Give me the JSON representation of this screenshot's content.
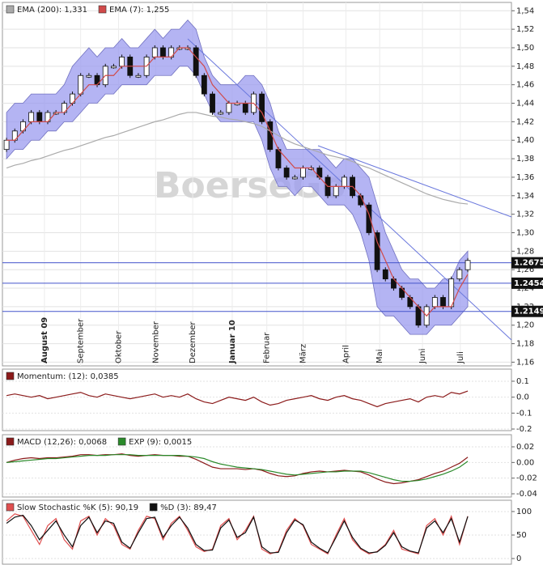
{
  "chart_data": [
    {
      "type": "candlestick",
      "watermark": "BoerseGo",
      "open": [
        1.39,
        1.4,
        1.41,
        1.42,
        1.43,
        1.42,
        1.43,
        1.43,
        1.44,
        1.45,
        1.47,
        1.47,
        1.46,
        1.48,
        1.48,
        1.49,
        1.47,
        1.47,
        1.49,
        1.5,
        1.49,
        1.5,
        1.5,
        1.5,
        1.47,
        1.45,
        1.43,
        1.43,
        1.44,
        1.44,
        1.43,
        1.45,
        1.42,
        1.39,
        1.37,
        1.36,
        1.36,
        1.37,
        1.37,
        1.36,
        1.34,
        1.35,
        1.36,
        1.34,
        1.33,
        1.3,
        1.26,
        1.25,
        1.24,
        1.23,
        1.22,
        1.2,
        1.22,
        1.23,
        1.22,
        1.25,
        1.26
      ],
      "close": [
        1.4,
        1.41,
        1.42,
        1.43,
        1.42,
        1.43,
        1.43,
        1.44,
        1.45,
        1.47,
        1.47,
        1.46,
        1.48,
        1.48,
        1.49,
        1.47,
        1.47,
        1.49,
        1.5,
        1.49,
        1.5,
        1.5,
        1.5,
        1.47,
        1.45,
        1.43,
        1.43,
        1.44,
        1.44,
        1.43,
        1.45,
        1.42,
        1.39,
        1.37,
        1.36,
        1.36,
        1.37,
        1.37,
        1.36,
        1.34,
        1.35,
        1.36,
        1.34,
        1.33,
        1.3,
        1.26,
        1.25,
        1.24,
        1.23,
        1.22,
        1.2,
        1.22,
        1.23,
        1.22,
        1.25,
        1.26,
        1.27
      ],
      "band": {
        "color": "#9b9bef",
        "upper": [
          1.43,
          1.44,
          1.44,
          1.45,
          1.45,
          1.45,
          1.45,
          1.46,
          1.48,
          1.49,
          1.5,
          1.49,
          1.5,
          1.5,
          1.51,
          1.5,
          1.5,
          1.51,
          1.52,
          1.51,
          1.52,
          1.52,
          1.53,
          1.52,
          1.49,
          1.47,
          1.46,
          1.46,
          1.46,
          1.47,
          1.47,
          1.46,
          1.44,
          1.41,
          1.39,
          1.39,
          1.39,
          1.39,
          1.39,
          1.38,
          1.37,
          1.38,
          1.38,
          1.37,
          1.36,
          1.33,
          1.3,
          1.28,
          1.26,
          1.25,
          1.25,
          1.24,
          1.24,
          1.25,
          1.25,
          1.27,
          1.28
        ],
        "lower": [
          1.38,
          1.39,
          1.39,
          1.4,
          1.4,
          1.41,
          1.41,
          1.42,
          1.42,
          1.43,
          1.44,
          1.44,
          1.45,
          1.45,
          1.46,
          1.46,
          1.46,
          1.46,
          1.47,
          1.47,
          1.47,
          1.48,
          1.48,
          1.47,
          1.45,
          1.43,
          1.42,
          1.42,
          1.42,
          1.42,
          1.42,
          1.4,
          1.37,
          1.35,
          1.35,
          1.34,
          1.35,
          1.35,
          1.34,
          1.33,
          1.33,
          1.33,
          1.32,
          1.3,
          1.27,
          1.22,
          1.21,
          1.21,
          1.2,
          1.19,
          1.19,
          1.19,
          1.2,
          1.2,
          1.2,
          1.21,
          1.22
        ]
      },
      "series": [
        {
          "name": "EMA (200): 1,331",
          "color": "#aaaaaa",
          "values": [
            1.37,
            1.373,
            1.375,
            1.378,
            1.38,
            1.383,
            1.386,
            1.389,
            1.391,
            1.394,
            1.397,
            1.4,
            1.403,
            1.405,
            1.408,
            1.411,
            1.414,
            1.417,
            1.42,
            1.422,
            1.425,
            1.428,
            1.43,
            1.43,
            1.428,
            1.426,
            1.425,
            1.423,
            1.422,
            1.42,
            1.418,
            1.415,
            1.41,
            1.405,
            1.4,
            1.396,
            1.393,
            1.39,
            1.387,
            1.384,
            1.382,
            1.38,
            1.377,
            1.373,
            1.37,
            1.366,
            1.362,
            1.358,
            1.354,
            1.35,
            1.346,
            1.342,
            1.339,
            1.336,
            1.334,
            1.332,
            1.331
          ]
        },
        {
          "name": "EMA (7): 1,255",
          "color": "#d04a4a",
          "values": [
            1.4,
            1.4,
            1.41,
            1.42,
            1.42,
            1.42,
            1.43,
            1.43,
            1.44,
            1.45,
            1.46,
            1.46,
            1.47,
            1.47,
            1.48,
            1.48,
            1.48,
            1.48,
            1.49,
            1.49,
            1.49,
            1.5,
            1.5,
            1.49,
            1.48,
            1.46,
            1.45,
            1.44,
            1.44,
            1.44,
            1.44,
            1.43,
            1.41,
            1.39,
            1.38,
            1.37,
            1.37,
            1.37,
            1.36,
            1.35,
            1.35,
            1.35,
            1.35,
            1.34,
            1.32,
            1.29,
            1.27,
            1.25,
            1.24,
            1.23,
            1.22,
            1.21,
            1.22,
            1.22,
            1.22,
            1.24,
            1.255
          ]
        }
      ],
      "levels": [
        1.2675,
        1.2454,
        1.2149
      ],
      "xlim": [
        -0.5,
        61.3
      ],
      "ylim": [
        1.156,
        1.549
      ],
      "xticks": [
        {
          "value": 4.6,
          "label": "August 09"
        },
        {
          "value": 9,
          "label": "September"
        },
        {
          "value": 13.6,
          "label": "Oktober"
        },
        {
          "value": 18.1,
          "label": "November"
        },
        {
          "value": 22.6,
          "label": "Dezember"
        },
        {
          "value": 27.4,
          "label": "Januar 10"
        },
        {
          "value": 31.6,
          "label": "Februar"
        },
        {
          "value": 36,
          "label": "März"
        },
        {
          "value": 41.2,
          "label": "April"
        },
        {
          "value": 45.3,
          "label": "Mai"
        },
        {
          "value": 50.5,
          "label": "Juni"
        },
        {
          "value": 55.1,
          "label": "Juli"
        }
      ],
      "yticks": [
        {
          "value": 1.16,
          "label": "1,16"
        },
        {
          "value": 1.18,
          "label": "1,18"
        },
        {
          "value": 1.2,
          "label": "1,20"
        },
        {
          "value": 1.22,
          "label": "1,22"
        },
        {
          "value": 1.24,
          "label": "1,24"
        },
        {
          "value": 1.26,
          "label": "1,26"
        },
        {
          "value": 1.28,
          "label": "1,28"
        },
        {
          "value": 1.3,
          "label": "1,30"
        },
        {
          "value": 1.32,
          "label": "1,32"
        },
        {
          "value": 1.34,
          "label": "1,34"
        },
        {
          "value": 1.36,
          "label": "1,36"
        },
        {
          "value": 1.38,
          "label": "1,38"
        },
        {
          "value": 1.4,
          "label": "1,40"
        },
        {
          "value": 1.42,
          "label": "1,42"
        },
        {
          "value": 1.44,
          "label": "1,44"
        },
        {
          "value": 1.46,
          "label": "1,46"
        },
        {
          "value": 1.48,
          "label": "1,48"
        },
        {
          "value": 1.5,
          "label": "1,50"
        },
        {
          "value": 1.52,
          "label": "1,52"
        },
        {
          "value": 1.54,
          "label": "1,54"
        }
      ],
      "grid": true
    },
    {
      "type": "line",
      "xlim": [
        -0.5,
        61.3
      ],
      "ylim": [
        -0.21,
        0.176
      ],
      "yticks": [
        0.1,
        {
          "value": 0,
          "label": "0.0"
        },
        -0.1,
        -0.2
      ],
      "grid": true,
      "series": [
        {
          "name": "Momentum: (12): 0,0385",
          "color": "#8b1a1a",
          "values": [
            0.01,
            0.02,
            0.01,
            0.0,
            0.01,
            -0.01,
            0.0,
            0.01,
            0.02,
            0.03,
            0.01,
            0.0,
            0.02,
            0.01,
            0.0,
            -0.01,
            0.0,
            0.01,
            0.02,
            0.0,
            0.01,
            0.0,
            0.02,
            -0.01,
            -0.03,
            -0.04,
            -0.02,
            0.0,
            -0.01,
            -0.02,
            0.0,
            -0.03,
            -0.05,
            -0.04,
            -0.02,
            -0.01,
            0.0,
            0.01,
            -0.01,
            -0.02,
            0.0,
            0.01,
            -0.01,
            -0.02,
            -0.04,
            -0.06,
            -0.04,
            -0.03,
            -0.02,
            -0.01,
            -0.03,
            0.0,
            0.01,
            0.0,
            0.03,
            0.02,
            0.0385
          ]
        }
      ]
    },
    {
      "type": "line",
      "xlim": [
        -0.5,
        61.3
      ],
      "ylim": [
        -0.0441,
        0.0355
      ],
      "yticks": [
        0.02,
        {
          "value": 0,
          "label": "0.00"
        },
        -0.02,
        -0.04
      ],
      "grid": true,
      "series": [
        {
          "name": "MACD (12,26): 0,0068",
          "color": "#8b1a1a",
          "values": [
            0.0,
            0.003,
            0.005,
            0.006,
            0.005,
            0.006,
            0.006,
            0.007,
            0.008,
            0.01,
            0.01,
            0.009,
            0.01,
            0.01,
            0.011,
            0.009,
            0.008,
            0.009,
            0.01,
            0.009,
            0.009,
            0.008,
            0.008,
            0.004,
            -0.001,
            -0.006,
            -0.008,
            -0.008,
            -0.008,
            -0.009,
            -0.008,
            -0.01,
            -0.014,
            -0.017,
            -0.018,
            -0.017,
            -0.014,
            -0.012,
            -0.011,
            -0.012,
            -0.011,
            -0.01,
            -0.011,
            -0.012,
            -0.016,
            -0.021,
            -0.025,
            -0.027,
            -0.026,
            -0.024,
            -0.022,
            -0.018,
            -0.014,
            -0.011,
            -0.006,
            -0.001,
            0.0068
          ]
        },
        {
          "name": "EXP (9): 0,0015",
          "color": "#2a8a2a",
          "values": [
            0.0,
            0.001,
            0.002,
            0.003,
            0.004,
            0.005,
            0.005,
            0.006,
            0.007,
            0.008,
            0.009,
            0.009,
            0.009,
            0.01,
            0.01,
            0.01,
            0.009,
            0.009,
            0.009,
            0.009,
            0.009,
            0.009,
            0.008,
            0.007,
            0.005,
            0.001,
            -0.002,
            -0.004,
            -0.006,
            -0.007,
            -0.008,
            -0.009,
            -0.011,
            -0.013,
            -0.015,
            -0.016,
            -0.015,
            -0.014,
            -0.013,
            -0.012,
            -0.012,
            -0.011,
            -0.011,
            -0.011,
            -0.013,
            -0.016,
            -0.019,
            -0.022,
            -0.024,
            -0.024,
            -0.023,
            -0.021,
            -0.018,
            -0.015,
            -0.011,
            -0.006,
            0.0015
          ]
        }
      ]
    },
    {
      "type": "line",
      "xlim": [
        -0.5,
        61.3
      ],
      "ylim": [
        -12,
        124
      ],
      "yticks": [
        100,
        50,
        0
      ],
      "grid": true,
      "series": [
        {
          "name": "Slow Stochastic %K (5): 90,19",
          "color": "#e05050",
          "values": [
            80,
            95,
            90,
            60,
            30,
            70,
            85,
            40,
            20,
            80,
            90,
            50,
            85,
            70,
            30,
            20,
            60,
            90,
            85,
            40,
            75,
            90,
            60,
            25,
            15,
            20,
            70,
            85,
            40,
            60,
            90,
            20,
            10,
            15,
            60,
            85,
            70,
            30,
            20,
            10,
            50,
            85,
            40,
            20,
            10,
            15,
            30,
            60,
            20,
            15,
            10,
            70,
            85,
            50,
            90,
            30,
            90.19
          ]
        },
        {
          "name": "%D (3): 89,47",
          "color": "#111111",
          "values": [
            75,
            88,
            92,
            70,
            40,
            60,
            80,
            50,
            25,
            70,
            88,
            55,
            80,
            75,
            35,
            22,
            55,
            85,
            88,
            45,
            70,
            88,
            65,
            30,
            17,
            18,
            65,
            82,
            45,
            55,
            88,
            25,
            12,
            13,
            55,
            82,
            72,
            35,
            22,
            12,
            45,
            80,
            45,
            22,
            12,
            14,
            28,
            55,
            25,
            16,
            12,
            65,
            80,
            55,
            85,
            35,
            89.47
          ]
        }
      ]
    }
  ]
}
